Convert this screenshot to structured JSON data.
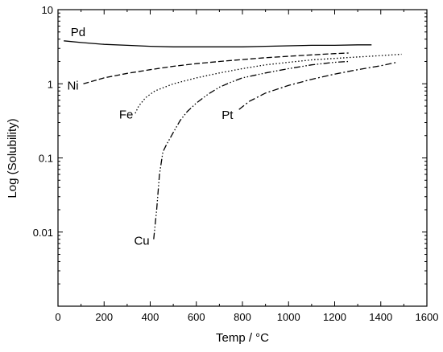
{
  "chart_data": {
    "type": "line",
    "xlabel": "Temp / °C",
    "ylabel": "Log (Solubility)",
    "xlim": [
      0,
      1600
    ],
    "ylim": [
      0.001,
      10
    ],
    "yscale": "log",
    "grid": false,
    "x_ticks": [
      0,
      200,
      400,
      600,
      800,
      1000,
      1200,
      1400,
      1600
    ],
    "y_ticks": [
      {
        "value": 0.01,
        "label": "0.01"
      },
      {
        "value": 0.1,
        "label": "0.1"
      },
      {
        "value": 1,
        "label": "1"
      },
      {
        "value": 10,
        "label": "10"
      }
    ],
    "series": [
      {
        "name": "Pd",
        "dash": "solid",
        "label_at": {
          "x": 55,
          "y": 5.0
        },
        "points": [
          [
            25,
            3.8
          ],
          [
            100,
            3.6
          ],
          [
            200,
            3.4
          ],
          [
            300,
            3.3
          ],
          [
            400,
            3.2
          ],
          [
            500,
            3.15
          ],
          [
            600,
            3.15
          ],
          [
            700,
            3.15
          ],
          [
            800,
            3.15
          ],
          [
            900,
            3.2
          ],
          [
            1000,
            3.25
          ],
          [
            1100,
            3.3
          ],
          [
            1200,
            3.3
          ],
          [
            1300,
            3.35
          ],
          [
            1360,
            3.35
          ]
        ]
      },
      {
        "name": "Ni",
        "dash": "dashed",
        "label_at": {
          "x": 40,
          "y": 0.95
        },
        "points": [
          [
            110,
            1.0
          ],
          [
            200,
            1.2
          ],
          [
            300,
            1.38
          ],
          [
            400,
            1.55
          ],
          [
            500,
            1.72
          ],
          [
            600,
            1.87
          ],
          [
            700,
            2.0
          ],
          [
            800,
            2.12
          ],
          [
            900,
            2.25
          ],
          [
            1000,
            2.35
          ],
          [
            1100,
            2.45
          ],
          [
            1200,
            2.55
          ],
          [
            1260,
            2.6
          ]
        ]
      },
      {
        "name": "Fe",
        "dash": "dotted",
        "label_at": {
          "x": 265,
          "y": 0.385
        },
        "points": [
          [
            335,
            0.4
          ],
          [
            350,
            0.5
          ],
          [
            380,
            0.65
          ],
          [
            420,
            0.8
          ],
          [
            500,
            1.0
          ],
          [
            600,
            1.2
          ],
          [
            700,
            1.4
          ],
          [
            800,
            1.6
          ],
          [
            900,
            1.8
          ],
          [
            1000,
            1.95
          ],
          [
            1100,
            2.1
          ],
          [
            1200,
            2.2
          ],
          [
            1300,
            2.3
          ],
          [
            1400,
            2.4
          ],
          [
            1490,
            2.5
          ]
        ]
      },
      {
        "name": "Cu",
        "dash": "dashdotdot",
        "label_at": {
          "x": 330,
          "y": 0.0076
        },
        "points": [
          [
            415,
            0.008
          ],
          [
            428,
            0.02
          ],
          [
            440,
            0.06
          ],
          [
            455,
            0.12
          ],
          [
            470,
            0.15
          ],
          [
            500,
            0.22
          ],
          [
            530,
            0.32
          ],
          [
            560,
            0.42
          ],
          [
            600,
            0.55
          ],
          [
            650,
            0.72
          ],
          [
            700,
            0.9
          ],
          [
            750,
            1.05
          ],
          [
            800,
            1.2
          ],
          [
            900,
            1.4
          ],
          [
            1000,
            1.6
          ],
          [
            1100,
            1.8
          ],
          [
            1200,
            1.95
          ],
          [
            1260,
            2.0
          ]
        ]
      },
      {
        "name": "Pt",
        "dash": "dashdot",
        "label_at": {
          "x": 710,
          "y": 0.38
        },
        "points": [
          [
            785,
            0.45
          ],
          [
            830,
            0.58
          ],
          [
            900,
            0.75
          ],
          [
            1000,
            0.95
          ],
          [
            1100,
            1.15
          ],
          [
            1200,
            1.35
          ],
          [
            1300,
            1.55
          ],
          [
            1400,
            1.75
          ],
          [
            1470,
            1.95
          ]
        ]
      }
    ]
  }
}
